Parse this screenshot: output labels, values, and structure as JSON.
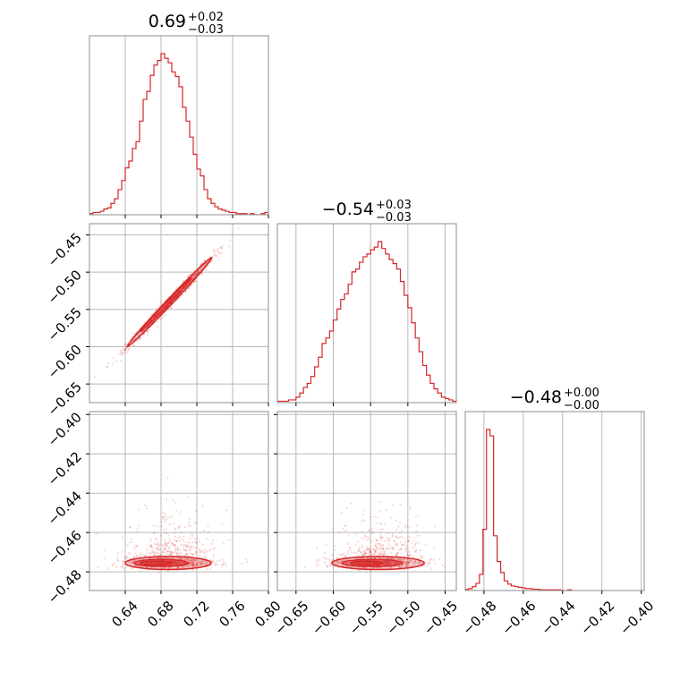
{
  "chart_data": {
    "type": "corner",
    "color": "#d62728",
    "grid": true,
    "parameters": [
      {
        "title": {
          "median": "0.69",
          "plus": "+0.02",
          "minus": "−0.03"
        },
        "range": [
          0.6,
          0.8
        ],
        "ticks": [
          0.64,
          0.68,
          0.72,
          0.76,
          0.8
        ],
        "tick_labels": [
          "0.64",
          "0.68",
          "0.72",
          "0.76",
          "0.80"
        ],
        "mean": 0.69,
        "sd": 0.022
      },
      {
        "title": {
          "median": "−0.54",
          "plus": "+0.03",
          "minus": "−0.03"
        },
        "range": [
          -0.675,
          -0.435
        ],
        "ticks": [
          -0.65,
          -0.6,
          -0.55,
          -0.5,
          -0.45
        ],
        "tick_labels": [
          "−0.65",
          "−0.60",
          "−0.55",
          "−0.50",
          "−0.45"
        ],
        "mean": -0.54,
        "sd": 0.027
      },
      {
        "title": {
          "median": "−0.48",
          "plus": "+0.00",
          "minus": "−0.00"
        },
        "range": [
          -0.4895,
          -0.3985
        ],
        "ticks": [
          -0.48,
          -0.46,
          -0.44,
          -0.42,
          -0.4
        ],
        "tick_labels": [
          "−0.48",
          "−0.46",
          "−0.44",
          "−0.42",
          "−0.40"
        ],
        "mean": -0.4755,
        "sd": 0.002
      }
    ],
    "histograms": [
      {
        "bins": [
          0.6,
          0.604,
          0.608,
          0.612,
          0.616,
          0.62,
          0.624,
          0.628,
          0.632,
          0.636,
          0.64,
          0.644,
          0.648,
          0.652,
          0.656,
          0.66,
          0.664,
          0.668,
          0.672,
          0.676,
          0.68,
          0.684,
          0.688,
          0.692,
          0.696,
          0.7,
          0.704,
          0.708,
          0.712,
          0.716,
          0.72,
          0.724,
          0.728,
          0.732,
          0.736,
          0.74,
          0.744,
          0.748,
          0.752,
          0.756,
          0.76,
          0.764,
          0.768,
          0.772,
          0.776,
          0.78,
          0.784,
          0.788,
          0.792,
          0.796,
          0.8
        ],
        "counts": [
          1,
          2,
          2,
          3,
          5,
          6,
          10,
          14,
          22,
          30,
          41,
          47,
          58,
          64,
          82,
          101,
          108,
          122,
          131,
          135,
          141,
          137,
          133,
          125,
          121,
          112,
          94,
          82,
          68,
          53,
          40,
          34,
          22,
          14,
          10,
          7,
          5,
          4,
          3,
          2,
          2,
          1,
          1,
          1,
          0,
          1,
          0,
          0,
          1,
          2
        ]
      },
      {
        "bins": [
          -0.675,
          -0.67,
          -0.665,
          -0.66,
          -0.655,
          -0.65,
          -0.645,
          -0.64,
          -0.635,
          -0.63,
          -0.625,
          -0.62,
          -0.615,
          -0.61,
          -0.605,
          -0.6,
          -0.595,
          -0.59,
          -0.585,
          -0.58,
          -0.575,
          -0.57,
          -0.565,
          -0.56,
          -0.555,
          -0.55,
          -0.545,
          -0.54,
          -0.535,
          -0.53,
          -0.525,
          -0.52,
          -0.515,
          -0.51,
          -0.505,
          -0.5,
          -0.495,
          -0.49,
          -0.485,
          -0.48,
          -0.475,
          -0.47,
          -0.465,
          -0.46,
          -0.455,
          -0.45,
          -0.445,
          -0.44,
          -0.435
        ],
        "counts": [
          1,
          1,
          1,
          2,
          2,
          4,
          7,
          11,
          14,
          19,
          26,
          33,
          43,
          47,
          52,
          60,
          68,
          75,
          79,
          86,
          95,
          97,
          102,
          106,
          108,
          111,
          113,
          117,
          112,
          108,
          104,
          101,
          97,
          88,
          78,
          69,
          58,
          47,
          37,
          27,
          20,
          14,
          10,
          7,
          4,
          3,
          2,
          1
        ]
      },
      {
        "bins": [
          -0.4895,
          -0.4877,
          -0.4859,
          -0.4841,
          -0.4823,
          -0.4805,
          -0.4787,
          -0.4769,
          -0.4751,
          -0.4733,
          -0.4715,
          -0.4697,
          -0.4679,
          -0.4661,
          -0.4643,
          -0.4625,
          -0.4607,
          -0.4589,
          -0.4571,
          -0.4553,
          -0.4535,
          -0.4517,
          -0.4499,
          -0.4481,
          -0.4463,
          -0.4445,
          -0.4427,
          -0.4409,
          -0.4391,
          -0.4373,
          -0.4355
        ],
        "counts": [
          2,
          3,
          6,
          11,
          25,
          95,
          250,
          240,
          85,
          45,
          28,
          15,
          10,
          7,
          6,
          5,
          4,
          3,
          3,
          2,
          2,
          1,
          1,
          1,
          1,
          1,
          1,
          0,
          0,
          1
        ]
      }
    ]
  }
}
